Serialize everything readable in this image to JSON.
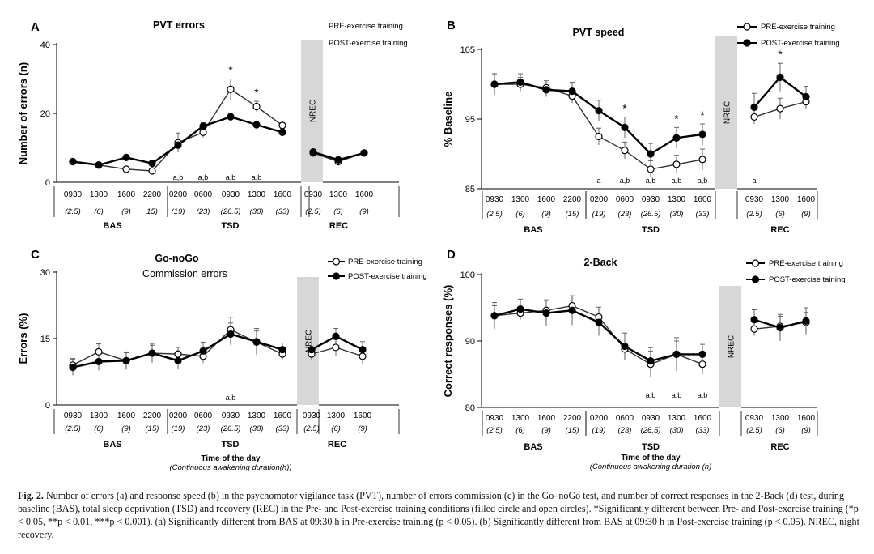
{
  "caption": {
    "label": "Fig. 2.",
    "text": "Number of errors (a) and response speed (b) in the psychomotor vigilance task (PVT), number of errors commission (c) in the Go–noGo test, and number of correct responses in the 2-Back (d) test, during baseline (BAS), total sleep deprivation (TSD) and recovery (REC) in the Pre- and Post-exercise training conditions (filled circle and open circles). *Significantly different between Pre- and Post-exercise training (*p < 0.05, **p < 0.01, ***p < 0.001). (a) Significantly different from BAS at 09:30 h in Pre-exercise training (p < 0.05). (b) Significantly different from BAS at 09:30 h in Post-exercise training (p < 0.05). NREC, night recovery."
  },
  "chart_data": [
    {
      "panel": "A",
      "type": "line",
      "title": "PVT errors",
      "subtitle": "",
      "ylabel": "Number of errors (n)",
      "xlabel": "",
      "xsub": "",
      "ylim": [
        0,
        40
      ],
      "yticks": [
        "0",
        "20",
        "40"
      ],
      "legend": {
        "pre": "PRE-exercise training",
        "post": "POST-exercise training",
        "placement": "top-right"
      },
      "groups": [
        {
          "name": "BAS",
          "times": [
            "0930",
            "1300",
            "1600",
            "2200"
          ],
          "durations": [
            "(2.5)",
            "(6)",
            "(9)",
            "15)"
          ]
        },
        {
          "name": "TSD",
          "times": [
            "0200",
            "0600",
            "0930",
            "1300",
            "1600"
          ],
          "durations": [
            "(19)",
            "(23)",
            "(26.5)",
            "(30)",
            "(33)"
          ]
        },
        {
          "name": "REC",
          "times": [
            "0930",
            "1300",
            "1600"
          ],
          "durations": [
            "(2.5)",
            "(6)",
            "(9)"
          ]
        }
      ],
      "nrec": "NREC",
      "series": [
        {
          "name": "PRE-exercise training",
          "marker": "open",
          "values": [
            6.0,
            5.0,
            3.8,
            3.3,
            11.5,
            14.5,
            27.0,
            22.0,
            16.5,
            8.5,
            6.0,
            8.5
          ]
        },
        {
          "name": "POST-exercise training",
          "marker": "filled",
          "values": [
            6.0,
            5.0,
            7.2,
            5.5,
            10.8,
            16.3,
            19.0,
            16.7,
            14.5,
            8.8,
            6.5,
            8.5
          ]
        }
      ],
      "errors": [
        [
          0.5,
          0.5,
          0.5,
          0.5,
          2.8,
          1.5,
          3.0,
          1.5,
          0.8,
          0.6,
          0.6,
          0.6
        ],
        [
          0.5,
          0.5,
          0.5,
          0.5,
          1.0,
          1.0,
          1.0,
          1.0,
          1.0,
          0.6,
          0.6,
          0.6
        ]
      ],
      "stars": [
        {
          "index": 6,
          "text": "*"
        },
        {
          "index": 7,
          "text": "*"
        }
      ],
      "letters": [
        {
          "index": 4,
          "text": "a,b"
        },
        {
          "index": 5,
          "text": "a,b"
        },
        {
          "index": 6,
          "text": "a,b"
        },
        {
          "index": 7,
          "text": "a,b"
        }
      ]
    },
    {
      "panel": "B",
      "type": "line",
      "title": "PVT speed",
      "subtitle": "",
      "ylabel": "% Baseline",
      "xlabel": "",
      "xsub": "",
      "ylim": [
        85,
        105
      ],
      "yticks": [
        "85",
        "95",
        "105"
      ],
      "legend": {
        "pre": "PRE-exercise training",
        "post": "POST-exercise training",
        "placement": "top-right"
      },
      "groups": [
        {
          "name": "BAS",
          "times": [
            "0930",
            "1300",
            "1600",
            "2200"
          ],
          "durations": [
            "(2.5)",
            "(6)",
            "(9)",
            "(15)"
          ]
        },
        {
          "name": "TSD",
          "times": [
            "0200",
            "0600",
            "0930",
            "1300",
            "1600"
          ],
          "durations": [
            "(19)",
            "(23)",
            "(26.5)",
            "(30)",
            "(33)"
          ]
        },
        {
          "name": "REC",
          "times": [
            "0930",
            "1300",
            "1600"
          ],
          "durations": [
            "(2.5)",
            "(6)",
            "(9)"
          ]
        }
      ],
      "nrec": "NREC",
      "series": [
        {
          "name": "PRE-exercise training",
          "marker": "open",
          "values": [
            100.0,
            100.0,
            99.5,
            98.3,
            92.5,
            90.5,
            87.8,
            88.5,
            89.2,
            95.3,
            96.5,
            97.5
          ]
        },
        {
          "name": "POST-exercise training",
          "marker": "filled",
          "values": [
            100.0,
            100.3,
            99.2,
            99.0,
            96.2,
            93.8,
            90.0,
            92.3,
            92.8,
            96.7,
            101.0,
            98.2
          ]
        }
      ],
      "errors": [
        [
          1.5,
          1.0,
          1.0,
          1.0,
          1.2,
          1.2,
          1.2,
          1.3,
          1.5,
          1.0,
          1.5,
          1.0
        ],
        [
          1.5,
          1.2,
          1.0,
          1.3,
          1.5,
          1.5,
          1.5,
          1.5,
          1.5,
          2.0,
          2.0,
          1.5
        ]
      ],
      "stars": [
        {
          "index": 5,
          "text": "*"
        },
        {
          "index": 7,
          "text": "*"
        },
        {
          "index": 8,
          "text": "*"
        },
        {
          "index": 10,
          "text": "*"
        }
      ],
      "letters": [
        {
          "index": 4,
          "text": "a"
        },
        {
          "index": 5,
          "text": "a,b"
        },
        {
          "index": 6,
          "text": "a,b"
        },
        {
          "index": 7,
          "text": "a,b"
        },
        {
          "index": 8,
          "text": "a,b"
        },
        {
          "index": 9,
          "text": "a"
        }
      ]
    },
    {
      "panel": "C",
      "type": "line",
      "title": "Go-noGo",
      "subtitle": "Commission errors",
      "ylabel": "Errors (%)",
      "xlabel": "Time of the day",
      "xsub": "(Continuous awakening duration(h))",
      "ylim": [
        0,
        30
      ],
      "yticks": [
        "0",
        "15",
        "30"
      ],
      "legend": {
        "pre": "PRE-exercise training",
        "post": "POST-exercise training",
        "placement": "top-right"
      },
      "groups": [
        {
          "name": "BAS",
          "times": [
            "0930",
            "1300",
            "1600",
            "2200"
          ],
          "durations": [
            "(2.5)",
            "(6)",
            "(9)",
            "(15)"
          ]
        },
        {
          "name": "TSD",
          "times": [
            "0200",
            "0600",
            "0930",
            "1300",
            "1600"
          ],
          "durations": [
            "(19)",
            "(23)",
            "(26.5)",
            "(30)",
            "(33)"
          ]
        },
        {
          "name": "REC",
          "times": [
            "0930",
            "1300",
            "1600"
          ],
          "durations": [
            "(2.5)",
            "(6)",
            "(9)"
          ]
        }
      ],
      "nrec": "NREC",
      "series": [
        {
          "name": "PRE-exercise training",
          "marker": "open",
          "values": [
            9.0,
            12.0,
            10.0,
            11.7,
            11.5,
            11.0,
            17.0,
            14.2,
            11.5,
            11.5,
            13.0,
            11.0
          ]
        },
        {
          "name": "POST-exercise training",
          "marker": "filled",
          "values": [
            8.5,
            9.8,
            10.0,
            11.7,
            10.0,
            12.2,
            16.0,
            14.3,
            12.5,
            12.5,
            15.5,
            12.5
          ]
        }
      ],
      "errors": [
        [
          1.5,
          1.8,
          1.8,
          1.8,
          1.5,
          1.5,
          2.8,
          2.5,
          1.2,
          1.5,
          1.8,
          1.8
        ],
        [
          1.8,
          2.0,
          2.0,
          2.2,
          2.0,
          2.0,
          2.5,
          3.0,
          1.5,
          1.5,
          1.8,
          1.8
        ]
      ],
      "stars": [],
      "letters": [
        {
          "index": 6,
          "text": "a,b"
        }
      ]
    },
    {
      "panel": "D",
      "type": "line",
      "title": "2-Back",
      "subtitle": "",
      "ylabel": "Correct responses (%)",
      "xlabel": "Time of the day",
      "xsub": "(Continuous awakening duration (h)",
      "ylim": [
        80,
        100
      ],
      "yticks": [
        "80",
        "90",
        "100"
      ],
      "legend": {
        "pre": "PRE-exercise training",
        "post": "POST-exercise taining",
        "placement": "top-right"
      },
      "groups": [
        {
          "name": "BAS",
          "times": [
            "0930",
            "1300",
            "1600",
            "2200"
          ],
          "durations": [
            "(2.5)",
            "(6)",
            "(9)",
            "(15)"
          ]
        },
        {
          "name": "TSD",
          "times": [
            "0200",
            "0600",
            "0930",
            "1300",
            "1600"
          ],
          "durations": [
            "(19)",
            "(23)",
            "(26.5)",
            "(30)",
            "(33)"
          ]
        },
        {
          "name": "REC",
          "times": [
            "0930",
            "1300",
            "1600"
          ],
          "durations": [
            "(2.5)",
            "(6)",
            "(9)"
          ]
        }
      ],
      "nrec": "NREC",
      "series": [
        {
          "name": "PRE-exercise training",
          "marker": "open",
          "values": [
            93.8,
            94.2,
            94.6,
            95.3,
            93.6,
            88.8,
            86.5,
            88.0,
            86.5,
            91.8,
            92.2,
            92.8
          ]
        },
        {
          "name": "POST-exercise training",
          "marker": "filled",
          "values": [
            93.8,
            94.8,
            94.2,
            94.6,
            92.8,
            89.2,
            87.0,
            88.0,
            88.0,
            93.2,
            92.0,
            93.0
          ]
        }
      ],
      "errors": [
        [
          1.5,
          1.0,
          1.5,
          1.5,
          1.5,
          1.5,
          2.0,
          2.0,
          1.5,
          1.0,
          1.5,
          1.5
        ],
        [
          2.0,
          1.5,
          2.0,
          2.2,
          2.0,
          2.0,
          2.0,
          2.5,
          1.5,
          1.5,
          2.0,
          2.0
        ]
      ],
      "stars": [],
      "letters": [
        {
          "index": 6,
          "text": "a,b"
        },
        {
          "index": 7,
          "text": "a,b"
        },
        {
          "index": 8,
          "text": "a,b"
        }
      ]
    }
  ]
}
